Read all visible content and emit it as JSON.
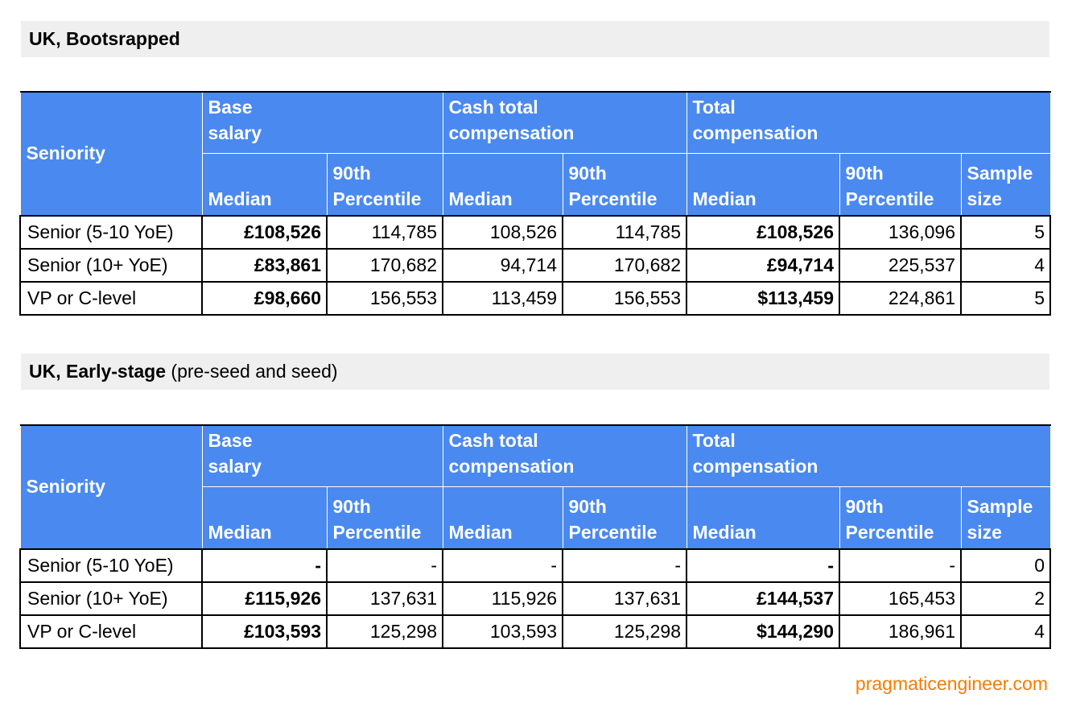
{
  "sections": [
    {
      "heading": "UK, Bootsrapped",
      "table": {
        "groups": [
          "Seniority",
          "Base salary",
          "Cash total compensation",
          "Total compensation"
        ],
        "subheaders": [
          "Median",
          "90th Percentile",
          "Median",
          "90th Percentile",
          "Median",
          "90th Percentile",
          "Sample size"
        ],
        "rows": [
          [
            "Senior (5-10 YoE)",
            "£108,526",
            "114,785",
            "108,526",
            "114,785",
            "£108,526",
            "136,096",
            "5"
          ],
          [
            "Senior (10+ YoE)",
            "£83,861",
            "170,682",
            "94,714",
            "170,682",
            "£94,714",
            "225,537",
            "4"
          ],
          [
            "VP or C-level",
            "£98,660",
            "156,553",
            "113,459",
            "156,553",
            "$113,459",
            "224,861",
            "5"
          ]
        ]
      }
    },
    {
      "heading": "UK, Early-stage",
      "heading_note": "(pre-seed and seed)",
      "table": {
        "groups": [
          "Seniority",
          "Base salary",
          "Cash total compensation",
          "Total compensation"
        ],
        "subheaders": [
          "Median",
          "90th Percentile",
          "Median",
          "90th Percentile",
          "Median",
          "90th Percentile",
          "Sample size"
        ],
        "rows": [
          [
            "Senior (5-10 YoE)",
            "-",
            "-",
            "-",
            "-",
            "-",
            "-",
            "0"
          ],
          [
            "Senior (10+ YoE)",
            "£115,926",
            "137,631",
            "115,926",
            "137,631",
            "£144,537",
            "165,453",
            "2"
          ],
          [
            "VP or C-level",
            "£103,593",
            "125,298",
            "103,593",
            "125,298",
            "$144,290",
            "186,961",
            "4"
          ]
        ]
      }
    }
  ],
  "footer": "pragmaticengineer.com"
}
